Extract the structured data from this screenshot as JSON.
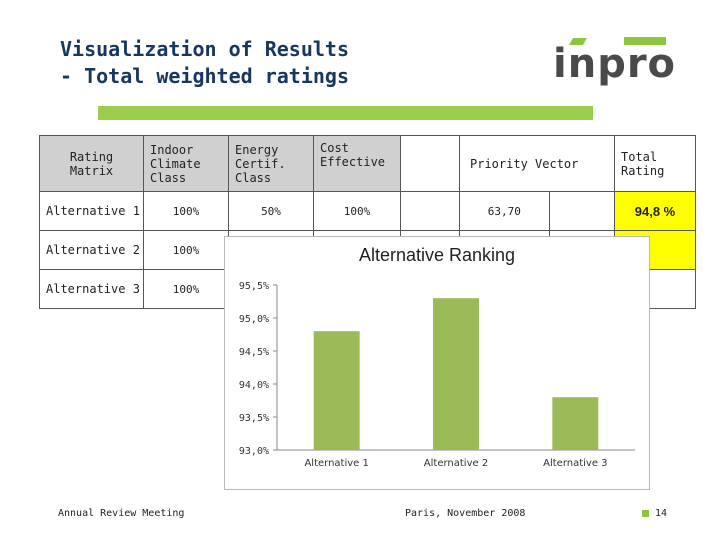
{
  "slide": {
    "title_line1": "Visualization of Results",
    "title_line2": "- Total weighted ratings",
    "logo_text": "inpro"
  },
  "table": {
    "headers": {
      "rating_matrix": "Rating Matrix",
      "indoor": "Indoor Climate Class",
      "energy": "Energy Certif. Class",
      "cost": "Cost Effective",
      "priority": "Priority Vector",
      "total": "Total Rating"
    },
    "rows": [
      {
        "label": "Alternative 1",
        "indoor": "100%",
        "energy": "50%",
        "cost": "100%",
        "priority": "63,70",
        "total": "94,8 %"
      },
      {
        "label": "Alternative 2",
        "indoor": "100%"
      },
      {
        "label": "Alternative 3",
        "indoor": "100%"
      }
    ]
  },
  "chart_data": {
    "type": "bar",
    "title": "Alternative Ranking",
    "categories": [
      "Alternative 1",
      "Alternative 2",
      "Alternative 3"
    ],
    "values": [
      94.8,
      95.3,
      93.8
    ],
    "ylim": [
      93.0,
      95.5
    ],
    "yticks": [
      93.0,
      93.5,
      94.0,
      94.5,
      95.0,
      95.5
    ],
    "ytick_labels": [
      "93,0%",
      "93,5%",
      "94,0%",
      "94,5%",
      "95,0%",
      "95,5%"
    ],
    "xlabel": "",
    "ylabel": "",
    "bar_color": "#9bbb59",
    "grid": false
  },
  "footer": {
    "left": "Annual Review Meeting",
    "center": "Paris, November 2008",
    "page": "14"
  },
  "colors": {
    "title": "#17375e",
    "accent_green": "#9ccc4b",
    "highlight_yellow": "#ffff00"
  }
}
